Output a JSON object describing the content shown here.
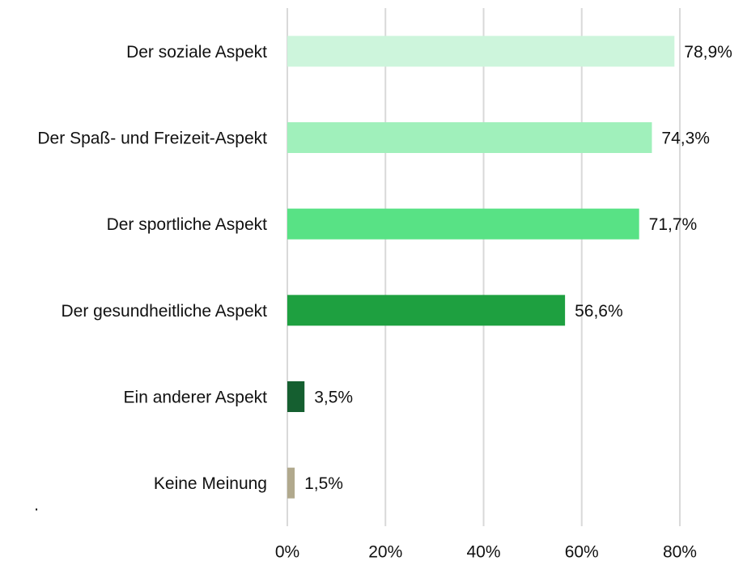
{
  "chart_data": {
    "type": "barh",
    "categories": [
      "Der soziale Aspekt",
      "Der Spaß- und Freizeit-Aspekt",
      "Der sportliche Aspekt",
      "Der gesundheitliche Aspekt",
      "Ein anderer Aspekt",
      "Keine Meinung"
    ],
    "values": [
      78.9,
      74.3,
      71.7,
      56.6,
      3.5,
      1.5
    ],
    "value_labels": [
      "78,9%",
      "74,3%",
      "71,7%",
      "56,6%",
      "3,5%",
      "1,5%"
    ],
    "colors": [
      "#cdf5dc",
      "#a0f0bb",
      "#58e285",
      "#1ea040",
      "#155f30",
      "#b1a98d"
    ],
    "xlim": [
      0,
      90
    ],
    "xticks": [
      {
        "value": 0,
        "label": "0%"
      },
      {
        "value": 20,
        "label": "20%"
      },
      {
        "value": 40,
        "label": "40%"
      },
      {
        "value": 60,
        "label": "60%"
      },
      {
        "value": 80,
        "label": "80%"
      }
    ],
    "grid": true,
    "note": "."
  }
}
